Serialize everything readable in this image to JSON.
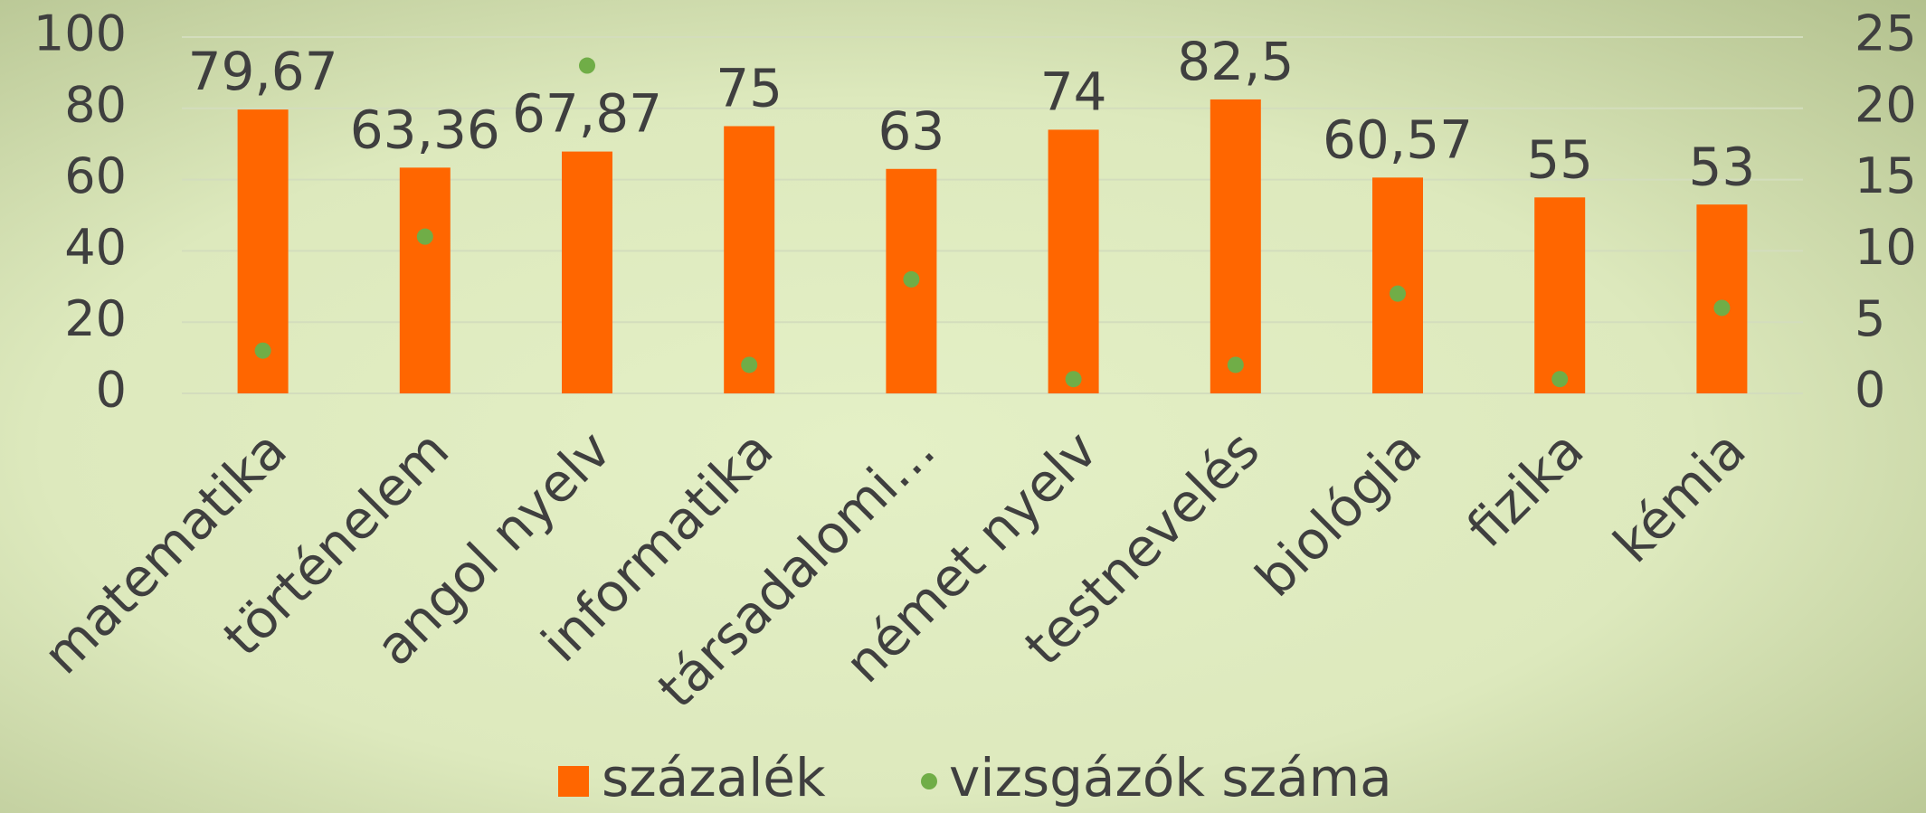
{
  "chart_data": {
    "type": "bar",
    "categories": [
      "matematika",
      "történelem",
      "angol nyelv",
      "informatika",
      "társadalomi…",
      "német nyelv",
      "testnevelés",
      "biológia",
      "fizika",
      "kémia"
    ],
    "series": [
      {
        "name": "százalék",
        "color": "#ff6600",
        "values": [
          79.67,
          63.36,
          67.87,
          75,
          63,
          74,
          82.5,
          60.57,
          55,
          53
        ],
        "value_labels": [
          "79,67",
          "63,36",
          "67,87",
          "75",
          "63",
          "74",
          "82,5",
          "60,57",
          "55",
          "53"
        ]
      },
      {
        "name": "vizsgázók száma",
        "color": "#70ad47",
        "type": "scatter",
        "axis": "y2",
        "values": [
          3,
          11,
          23,
          2,
          8,
          1,
          2,
          7,
          1,
          6
        ]
      }
    ],
    "ylim": [
      0,
      100
    ],
    "yticks": [
      0,
      20,
      40,
      60,
      80,
      100
    ],
    "y2lim": [
      0,
      25
    ],
    "y2ticks": [
      0,
      5,
      10,
      15,
      20,
      25
    ],
    "grid": true,
    "legend": "bottom"
  }
}
